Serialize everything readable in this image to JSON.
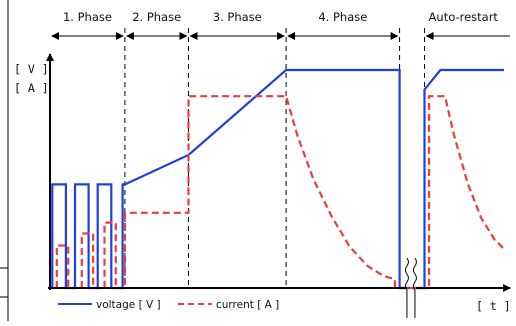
{
  "chart_data": {
    "type": "line",
    "title": "",
    "ylabel_top": "[ V ]",
    "ylabel_bottom": "[ A ]",
    "xlabel": "[ t ]",
    "grid": false,
    "legend": [
      {
        "name": "voltage [ V ]",
        "color": "#1f3fdf",
        "style": "solid"
      },
      {
        "name": "current [ A ]",
        "color": "#ef3b3b",
        "style": "dashed"
      }
    ],
    "phases": [
      {
        "label": "1. Phase"
      },
      {
        "label": "2. Phase"
      },
      {
        "label": "3. Phase"
      },
      {
        "label": "4. Phase"
      },
      {
        "label": "Auto-restart"
      }
    ],
    "x_range": [
      0,
      10
    ],
    "y_range": [
      0,
      1
    ],
    "phase_bounds": [
      0,
      1.65,
      3.05,
      5.2,
      7.7,
      8.25,
      10
    ],
    "series": [
      {
        "name": "voltage [ V ]",
        "x": [
          0.05,
          0.05,
          0.35,
          0.35,
          0.55,
          0.55,
          0.85,
          0.85,
          1.05,
          1.05,
          1.35,
          1.35,
          1.6,
          1.6,
          1.65,
          3.05,
          5.2,
          7.7,
          7.7,
          8.25,
          8.25,
          8.6,
          10
        ],
        "y": [
          0,
          0.475,
          0.475,
          0,
          0,
          0.475,
          0.475,
          0,
          0,
          0.475,
          0.475,
          0,
          0,
          0.475,
          0.475,
          0.61,
          1.0,
          1.0,
          0,
          0,
          0.91,
          1.0,
          1.0
        ]
      },
      {
        "name": "current [ A ]",
        "x": [
          0.15,
          0.15,
          0.4,
          0.4,
          0.7,
          0.7,
          0.95,
          0.95,
          1.2,
          1.2,
          1.45,
          1.45,
          1.65,
          1.65,
          3.05,
          3.05,
          5.2,
          5.45,
          5.8,
          6.2,
          6.6,
          7.0,
          7.35,
          7.6,
          7.6,
          8.35,
          8.35,
          8.7,
          8.9,
          9.2,
          9.5,
          9.8,
          10.0
        ],
        "y": [
          0,
          0.195,
          0.195,
          0,
          0,
          0.25,
          0.25,
          0,
          0,
          0.3,
          0.3,
          0,
          0,
          0.345,
          0.345,
          0.88,
          0.88,
          0.7,
          0.5,
          0.33,
          0.19,
          0.1,
          0.055,
          0.04,
          0,
          0,
          0.88,
          0.88,
          0.7,
          0.48,
          0.32,
          0.22,
          0.18
        ]
      }
    ]
  }
}
